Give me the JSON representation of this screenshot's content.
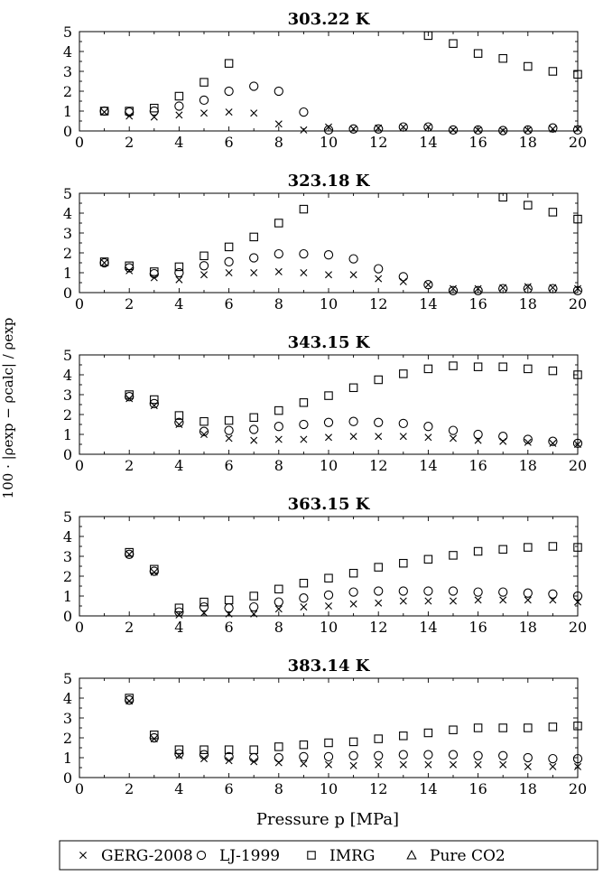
{
  "figure": {
    "ylabel": "100 · |ρexp − ρcalc| / ρexp",
    "xlabel": "Pressure p [MPa]"
  },
  "legend": [
    {
      "name": "GERG-2008",
      "marker": "x"
    },
    {
      "name": "LJ-1999",
      "marker": "circle"
    },
    {
      "name": "IMRG",
      "marker": "square"
    },
    {
      "name": "Pure CO2",
      "marker": "triangle"
    }
  ],
  "chart_data": [
    {
      "type": "scatter",
      "title": "303.22 K",
      "xlim": [
        0,
        20
      ],
      "ylim": [
        0,
        5
      ],
      "xticks": [
        "0",
        "2",
        "4",
        "6",
        "8",
        "10",
        "12",
        "14",
        "16",
        "18",
        "20"
      ],
      "yticks": [
        "0",
        "1",
        "2",
        "3",
        "4",
        "5"
      ],
      "series": [
        {
          "name": "GERG-2008",
          "marker": "x",
          "x": [
            1,
            2,
            3,
            4,
            5,
            6,
            7,
            8,
            9,
            10,
            11,
            12,
            13,
            14,
            15,
            16,
            17,
            18,
            19,
            20
          ],
          "y": [
            0.95,
            0.75,
            0.7,
            0.8,
            0.9,
            0.95,
            0.9,
            0.35,
            0.05,
            0.2,
            0.1,
            0.15,
            0.2,
            0.2,
            0.05,
            0.05,
            0.02,
            0.05,
            0.1,
            0.1
          ]
        },
        {
          "name": "LJ-1999",
          "marker": "circle",
          "x": [
            1,
            2,
            3,
            4,
            5,
            6,
            7,
            8,
            9,
            10,
            11,
            12,
            13,
            14,
            15,
            16,
            17,
            18,
            19,
            20
          ],
          "y": [
            1.0,
            0.95,
            1.0,
            1.25,
            1.55,
            2.0,
            2.25,
            2.0,
            0.95,
            0.05,
            0.1,
            0.1,
            0.2,
            0.2,
            0.05,
            0.05,
            0.02,
            0.05,
            0.15,
            0.05
          ]
        },
        {
          "name": "IMRG",
          "marker": "square",
          "x": [
            1,
            2,
            3,
            4,
            5,
            6,
            14,
            15,
            16,
            17,
            18,
            19,
            20
          ],
          "y": [
            1.0,
            1.0,
            1.15,
            1.75,
            2.45,
            3.4,
            4.8,
            4.4,
            3.9,
            3.65,
            3.25,
            3.0,
            2.85
          ]
        }
      ]
    },
    {
      "type": "scatter",
      "title": "323.18 K",
      "xlim": [
        0,
        20
      ],
      "ylim": [
        0,
        5
      ],
      "xticks": [
        "0",
        "2",
        "4",
        "6",
        "8",
        "10",
        "12",
        "14",
        "16",
        "18",
        "20"
      ],
      "yticks": [
        "0",
        "1",
        "2",
        "3",
        "4",
        "5"
      ],
      "series": [
        {
          "name": "GERG-2008",
          "marker": "x",
          "x": [
            1,
            2,
            3,
            4,
            5,
            6,
            7,
            8,
            9,
            10,
            11,
            12,
            13,
            14,
            15,
            16,
            17,
            18,
            19,
            20
          ],
          "y": [
            1.5,
            1.1,
            0.75,
            0.65,
            0.9,
            1.0,
            1.0,
            1.05,
            1.0,
            0.9,
            0.9,
            0.7,
            0.55,
            0.4,
            0.2,
            0.2,
            0.25,
            0.3,
            0.25,
            0.2
          ]
        },
        {
          "name": "LJ-1999",
          "marker": "circle",
          "x": [
            1,
            2,
            3,
            4,
            5,
            6,
            7,
            8,
            9,
            10,
            11,
            12,
            13,
            14,
            15,
            16,
            17,
            18,
            19,
            20
          ],
          "y": [
            1.5,
            1.25,
            0.95,
            1.0,
            1.35,
            1.55,
            1.75,
            1.95,
            1.95,
            1.9,
            1.7,
            1.2,
            0.8,
            0.4,
            0.1,
            0.1,
            0.2,
            0.2,
            0.2,
            0.1
          ]
        },
        {
          "name": "IMRG",
          "marker": "square",
          "x": [
            1,
            2,
            3,
            4,
            5,
            6,
            7,
            8,
            9,
            17,
            18,
            19,
            20
          ],
          "y": [
            1.55,
            1.35,
            1.05,
            1.3,
            1.85,
            2.3,
            2.8,
            3.5,
            4.2,
            4.8,
            4.4,
            4.05,
            3.7
          ]
        }
      ]
    },
    {
      "type": "scatter",
      "title": "343.15 K",
      "xlim": [
        0,
        20
      ],
      "ylim": [
        0,
        5
      ],
      "xticks": [
        "0",
        "2",
        "4",
        "6",
        "8",
        "10",
        "12",
        "14",
        "16",
        "18",
        "20"
      ],
      "yticks": [
        "0",
        "1",
        "2",
        "3",
        "4",
        "5"
      ],
      "series": [
        {
          "name": "GERG-2008",
          "marker": "x",
          "x": [
            2,
            3,
            4,
            5,
            6,
            7,
            8,
            9,
            10,
            11,
            12,
            13,
            14,
            15,
            16,
            17,
            18,
            19,
            20
          ],
          "y": [
            2.8,
            2.45,
            1.5,
            1.0,
            0.8,
            0.7,
            0.75,
            0.75,
            0.85,
            0.9,
            0.9,
            0.9,
            0.85,
            0.8,
            0.7,
            0.65,
            0.6,
            0.55,
            0.5
          ]
        },
        {
          "name": "LJ-1999",
          "marker": "circle",
          "x": [
            2,
            3,
            4,
            5,
            6,
            7,
            8,
            9,
            10,
            11,
            12,
            13,
            14,
            15,
            16,
            17,
            18,
            19,
            20
          ],
          "y": [
            2.9,
            2.55,
            1.6,
            1.15,
            1.2,
            1.25,
            1.4,
            1.5,
            1.6,
            1.65,
            1.6,
            1.55,
            1.4,
            1.2,
            1.0,
            0.9,
            0.75,
            0.65,
            0.55
          ]
        },
        {
          "name": "IMRG",
          "marker": "square",
          "x": [
            2,
            3,
            4,
            5,
            6,
            7,
            8,
            9,
            10,
            11,
            12,
            13,
            14,
            15,
            16,
            17,
            18,
            19,
            20
          ],
          "y": [
            3.0,
            2.75,
            1.95,
            1.65,
            1.7,
            1.85,
            2.2,
            2.6,
            2.95,
            3.35,
            3.75,
            4.05,
            4.3,
            4.45,
            4.4,
            4.4,
            4.3,
            4.2,
            4.0
          ]
        }
      ]
    },
    {
      "type": "scatter",
      "title": "363.15 K",
      "xlim": [
        0,
        20
      ],
      "ylim": [
        0,
        5
      ],
      "xticks": [
        "0",
        "2",
        "4",
        "6",
        "8",
        "10",
        "12",
        "14",
        "16",
        "18",
        "20"
      ],
      "yticks": [
        "0",
        "1",
        "2",
        "3",
        "4",
        "5"
      ],
      "series": [
        {
          "name": "GERG-2008",
          "marker": "x",
          "x": [
            2,
            3,
            4,
            5,
            6,
            7,
            8,
            9,
            10,
            11,
            12,
            13,
            14,
            15,
            16,
            17,
            18,
            19,
            20
          ],
          "y": [
            3.1,
            2.2,
            0.05,
            0.15,
            0.1,
            0.1,
            0.35,
            0.45,
            0.5,
            0.6,
            0.65,
            0.75,
            0.75,
            0.75,
            0.8,
            0.8,
            0.8,
            0.8,
            0.7
          ]
        },
        {
          "name": "LJ-1999",
          "marker": "circle",
          "x": [
            2,
            3,
            4,
            5,
            6,
            7,
            8,
            9,
            10,
            11,
            12,
            13,
            14,
            15,
            16,
            17,
            18,
            19,
            20
          ],
          "y": [
            3.1,
            2.25,
            0.2,
            0.45,
            0.4,
            0.45,
            0.7,
            0.9,
            1.05,
            1.2,
            1.25,
            1.25,
            1.25,
            1.25,
            1.2,
            1.2,
            1.15,
            1.1,
            1.0
          ]
        },
        {
          "name": "IMRG",
          "marker": "square",
          "x": [
            2,
            3,
            4,
            5,
            6,
            7,
            8,
            9,
            10,
            11,
            12,
            13,
            14,
            15,
            16,
            17,
            18,
            19,
            20
          ],
          "y": [
            3.2,
            2.35,
            0.4,
            0.7,
            0.8,
            1.0,
            1.35,
            1.65,
            1.9,
            2.15,
            2.45,
            2.65,
            2.85,
            3.05,
            3.25,
            3.35,
            3.45,
            3.5,
            3.45
          ]
        }
      ]
    },
    {
      "type": "scatter",
      "title": "383.14 K",
      "xlim": [
        0,
        20
      ],
      "ylim": [
        0,
        5
      ],
      "xticks": [
        "0",
        "2",
        "4",
        "6",
        "8",
        "10",
        "12",
        "14",
        "16",
        "18",
        "20"
      ],
      "yticks": [
        "0",
        "1",
        "2",
        "3",
        "4",
        "5"
      ],
      "series": [
        {
          "name": "GERG-2008",
          "marker": "x",
          "x": [
            2,
            3,
            4,
            5,
            6,
            7,
            8,
            9,
            10,
            11,
            12,
            13,
            14,
            15,
            16,
            17,
            18,
            19,
            20
          ],
          "y": [
            3.85,
            1.95,
            1.1,
            0.95,
            0.85,
            0.8,
            0.75,
            0.7,
            0.65,
            0.6,
            0.65,
            0.65,
            0.65,
            0.65,
            0.65,
            0.65,
            0.55,
            0.55,
            0.55
          ]
        },
        {
          "name": "LJ-1999",
          "marker": "circle",
          "x": [
            2,
            3,
            4,
            5,
            6,
            7,
            8,
            9,
            10,
            11,
            12,
            13,
            14,
            15,
            16,
            17,
            18,
            19,
            20
          ],
          "y": [
            3.9,
            2.0,
            1.2,
            1.15,
            1.05,
            1.0,
            1.0,
            1.05,
            1.05,
            1.1,
            1.1,
            1.15,
            1.15,
            1.15,
            1.1,
            1.1,
            1.0,
            0.95,
            0.95
          ]
        },
        {
          "name": "IMRG",
          "marker": "square",
          "x": [
            2,
            3,
            4,
            5,
            6,
            7,
            8,
            9,
            10,
            11,
            12,
            13,
            14,
            15,
            16,
            17,
            18,
            19,
            20
          ],
          "y": [
            4.0,
            2.15,
            1.4,
            1.4,
            1.4,
            1.4,
            1.55,
            1.65,
            1.75,
            1.8,
            1.95,
            2.1,
            2.25,
            2.4,
            2.5,
            2.5,
            2.5,
            2.55,
            2.6
          ]
        }
      ]
    }
  ]
}
